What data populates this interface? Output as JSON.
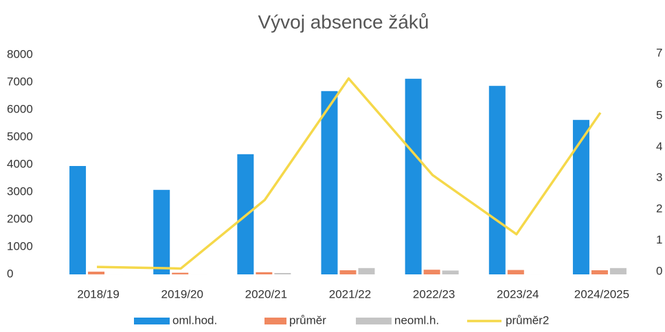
{
  "chart_data": {
    "type": "bar",
    "title": "Vývoj absence žáků",
    "categories": [
      "2018/19",
      "2019/20",
      "2020/21",
      "2021/22",
      "2022/23",
      "2023/24",
      "2024/2025"
    ],
    "series": [
      {
        "name": "oml.hod.",
        "color": "#1e90e0",
        "values": [
          3950,
          3080,
          4380,
          6680,
          7130,
          6870,
          5630
        ]
      },
      {
        "name": "průměr",
        "color": "#f08860",
        "values": [
          100,
          60,
          80,
          150,
          170,
          160,
          150
        ]
      },
      {
        "name": "neoml.h.",
        "color": "#c4c4c4",
        "values": [
          0,
          0,
          50,
          230,
          140,
          0,
          230
        ]
      },
      {
        "name": "průměr2",
        "color": "#f5d84a",
        "type": "line",
        "axis": "y2",
        "values": [
          0.15,
          0.1,
          2.3,
          6.2,
          3.1,
          1.2,
          5.1
        ]
      }
    ],
    "ylim": [
      0,
      8000
    ],
    "yticks": [
      0,
      1000,
      2000,
      3000,
      4000,
      5000,
      6000,
      7000,
      8000
    ],
    "y2lim": [
      0,
      7
    ],
    "y2ticks": [
      0,
      1,
      2,
      3,
      4,
      5,
      6,
      7
    ],
    "legend": "bottom"
  }
}
